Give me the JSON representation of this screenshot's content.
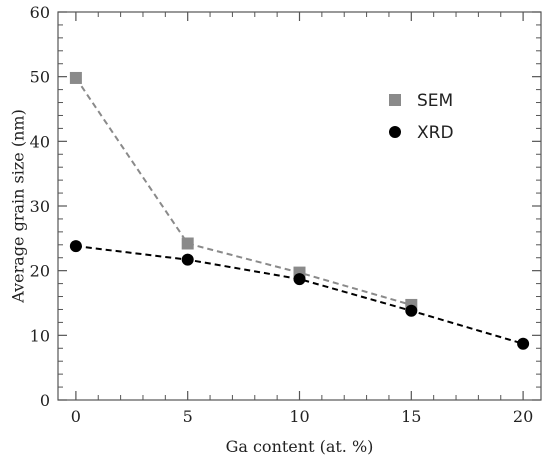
{
  "chart_data": {
    "type": "scatter",
    "title": "",
    "xlabel": "Ga content (at. %)",
    "ylabel": "Average grain size (nm)",
    "xlim": [
      -0.8,
      20.8
    ],
    "ylim": [
      0,
      60
    ],
    "xticks": [
      0,
      5,
      10,
      15,
      20
    ],
    "yticks": [
      0,
      10,
      20,
      30,
      40,
      50,
      60
    ],
    "x_minor_step": 1,
    "y_minor_step": 2,
    "grid": false,
    "legend_position": "upper-right",
    "series": [
      {
        "name": "SEM",
        "marker": "square",
        "color": "#8a8a8a",
        "line_style": "dashed",
        "x": [
          0,
          5,
          10,
          15
        ],
        "y": [
          49.8,
          24.2,
          19.7,
          14.7
        ]
      },
      {
        "name": "XRD",
        "marker": "circle",
        "color": "#000000",
        "line_style": "dashed",
        "x": [
          0,
          5,
          10,
          15,
          20
        ],
        "y": [
          23.8,
          21.7,
          18.7,
          13.8,
          8.7
        ]
      }
    ]
  }
}
